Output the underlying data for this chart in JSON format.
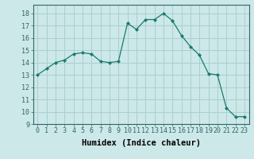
{
  "x": [
    0,
    1,
    2,
    3,
    4,
    5,
    6,
    7,
    8,
    9,
    10,
    11,
    12,
    13,
    14,
    15,
    16,
    17,
    18,
    19,
    20,
    21,
    22,
    23
  ],
  "y": [
    13,
    13.5,
    14,
    14.2,
    14.7,
    14.8,
    14.7,
    14.1,
    14,
    14.1,
    17.2,
    16.7,
    17.5,
    17.5,
    18.0,
    17.4,
    16.2,
    15.3,
    14.6,
    13.1,
    13.0,
    10.3,
    9.6,
    9.6
  ],
  "line_color": "#1a7a6e",
  "marker": "D",
  "marker_size": 2,
  "bg_color": "#cce8e8",
  "grid_color": "#aacfcf",
  "xlabel": "Humidex (Indice chaleur)",
  "xlim": [
    -0.5,
    23.5
  ],
  "ylim": [
    9,
    18.7
  ],
  "yticks": [
    9,
    10,
    11,
    12,
    13,
    14,
    15,
    16,
    17,
    18
  ],
  "xticks": [
    0,
    1,
    2,
    3,
    4,
    5,
    6,
    7,
    8,
    9,
    10,
    11,
    12,
    13,
    14,
    15,
    16,
    17,
    18,
    19,
    20,
    21,
    22,
    23
  ],
  "font_size": 6,
  "xlabel_fontsize": 7.5
}
